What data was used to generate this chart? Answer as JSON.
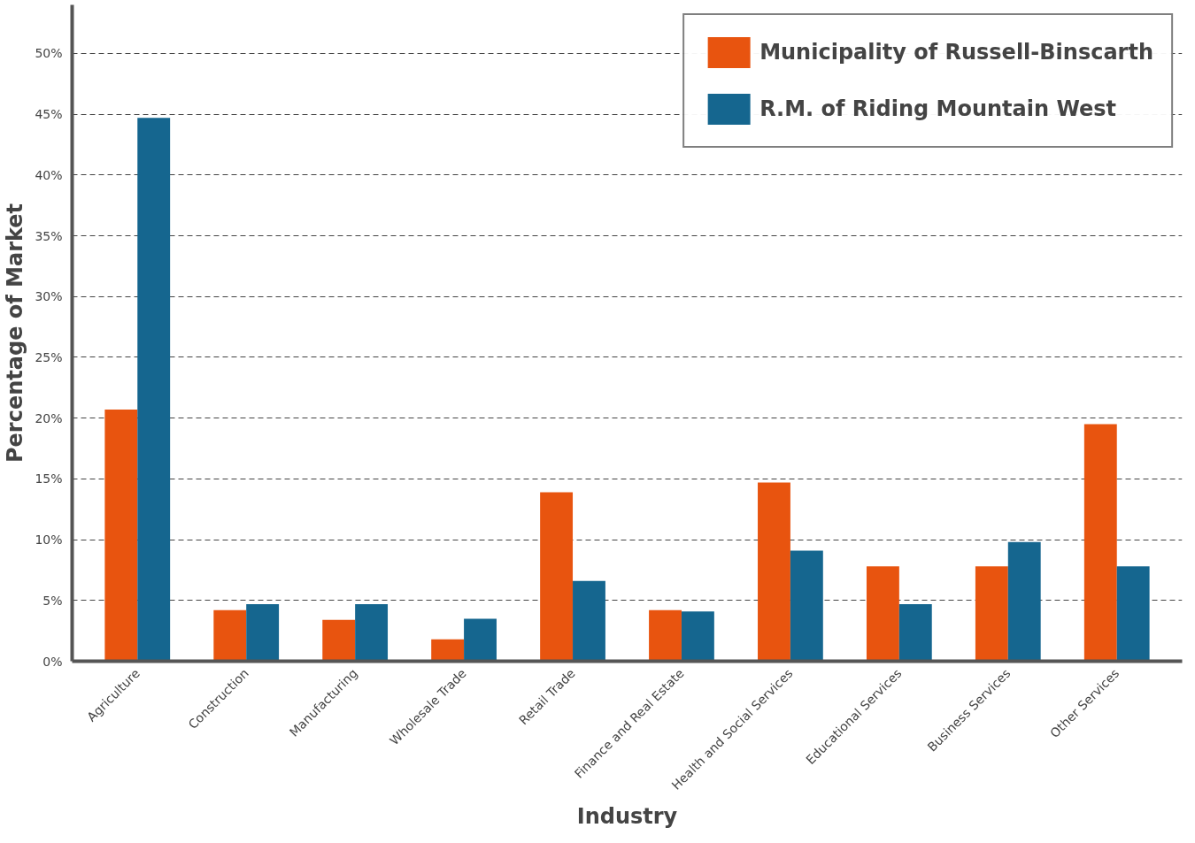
{
  "chart_data": {
    "type": "bar",
    "xlabel": "Industry",
    "ylabel": "Percentage of Market",
    "categories": [
      "Agriculture",
      "Construction",
      "Manufacturing",
      "Wholesale Trade",
      "Retail Trade",
      "Finance and Real Estate",
      "Health and Social Services",
      "Educational Services",
      "Business Services",
      "Other Services"
    ],
    "series": [
      {
        "name": "Municipality of Russell-Binscarth",
        "color": "#e8540f",
        "values": [
          20.7,
          4.2,
          3.4,
          1.8,
          13.9,
          4.2,
          14.7,
          7.8,
          7.8,
          19.5
        ]
      },
      {
        "name": "R.M. of Riding Mountain West",
        "color": "#15668f",
        "values": [
          44.7,
          4.7,
          4.7,
          3.5,
          6.6,
          4.1,
          9.1,
          4.7,
          9.8,
          7.8
        ]
      }
    ],
    "ylim": [
      0,
      54
    ],
    "yticks": [
      {
        "value": 0,
        "label": "0%"
      },
      {
        "value": 5,
        "label": "5%"
      },
      {
        "value": 10,
        "label": "10%"
      },
      {
        "value": 15,
        "label": "15%"
      },
      {
        "value": 20,
        "label": "20%"
      },
      {
        "value": 25,
        "label": "25%"
      },
      {
        "value": 30,
        "label": "30%"
      },
      {
        "value": 35,
        "label": "35%"
      },
      {
        "value": 40,
        "label": "40%"
      },
      {
        "value": 45,
        "label": "45%"
      },
      {
        "value": 50,
        "label": "50%"
      }
    ],
    "grid": "y",
    "legend": "top right"
  }
}
